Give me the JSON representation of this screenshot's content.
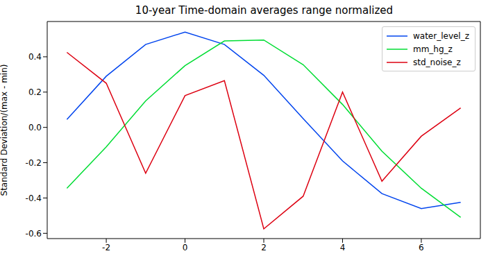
{
  "chart_data": {
    "type": "line",
    "title": "10-year Time-domain averages range normalized",
    "y_label": "Standard Deviation/(max - min)",
    "x": [
      -3,
      -2,
      -1,
      0,
      1,
      2,
      3,
      4,
      5,
      6,
      7
    ],
    "series": [
      {
        "name": "water_level_z",
        "color": "#0044ee",
        "values": [
          0.045,
          0.29,
          0.47,
          0.54,
          0.47,
          0.295,
          0.05,
          -0.19,
          -0.375,
          -0.46,
          -0.425
        ]
      },
      {
        "name": "mm_hg_z",
        "color": "#00dd33",
        "values": [
          -0.345,
          -0.11,
          0.15,
          0.35,
          0.49,
          0.495,
          0.355,
          0.13,
          -0.135,
          -0.345,
          -0.51
        ]
      },
      {
        "name": "std_noise_z",
        "color": "#dd0011",
        "values": [
          0.425,
          0.25,
          -0.26,
          0.18,
          0.265,
          -0.575,
          -0.39,
          0.2,
          -0.305,
          -0.05,
          0.11
        ]
      }
    ],
    "xlim": [
      -3.5,
      7.5
    ],
    "xticks": [
      -2,
      0,
      2,
      4,
      6
    ],
    "ylim": [
      -0.63,
      0.6
    ],
    "yticks": [
      -0.6,
      -0.4,
      -0.2,
      {
        "value": 0,
        "label": "0.0"
      },
      0.2,
      0.4
    ],
    "legend": "upper right",
    "grid": false
  }
}
